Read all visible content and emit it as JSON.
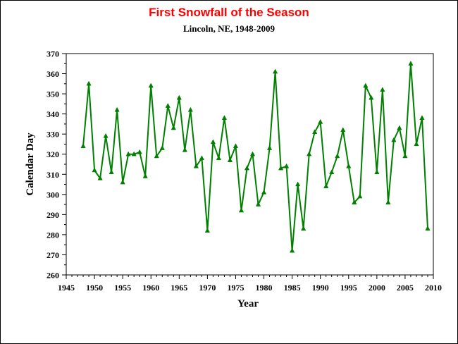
{
  "chart_data": {
    "type": "line",
    "title": "First Snowfall of the Season",
    "subtitle": "Lincoln, NE, 1948-2009",
    "xlabel": "Year",
    "ylabel": "Calendar Day",
    "xlim": [
      1945,
      2010
    ],
    "ylim": [
      260,
      370
    ],
    "x_ticks": [
      1945,
      1950,
      1955,
      1960,
      1965,
      1970,
      1975,
      1980,
      1985,
      1990,
      1995,
      2000,
      2005,
      2010
    ],
    "y_ticks": [
      260,
      270,
      280,
      290,
      300,
      310,
      320,
      330,
      340,
      350,
      360,
      370
    ],
    "grid": false,
    "legend": "none",
    "series": [
      {
        "color": "#008000",
        "marker": "triangle",
        "x": [
          1948,
          1949,
          1950,
          1951,
          1952,
          1953,
          1954,
          1955,
          1956,
          1957,
          1958,
          1959,
          1960,
          1961,
          1962,
          1963,
          1964,
          1965,
          1966,
          1967,
          1968,
          1969,
          1970,
          1971,
          1972,
          1973,
          1974,
          1975,
          1976,
          1977,
          1978,
          1979,
          1980,
          1981,
          1982,
          1983,
          1984,
          1985,
          1986,
          1987,
          1988,
          1989,
          1990,
          1991,
          1992,
          1993,
          1994,
          1995,
          1996,
          1997,
          1998,
          1999,
          2000,
          2001,
          2002,
          2003,
          2004,
          2005,
          2006,
          2007,
          2008,
          2009
        ],
        "y": [
          324,
          355,
          312,
          308,
          329,
          311,
          342,
          306,
          320,
          320,
          321,
          309,
          354,
          319,
          323,
          344,
          333,
          348,
          322,
          342,
          314,
          318,
          282,
          326,
          318,
          338,
          317,
          324,
          292,
          313,
          320,
          295,
          301,
          323,
          361,
          313,
          314,
          272,
          305,
          283,
          320,
          331,
          336,
          304,
          311,
          319,
          332,
          314,
          296,
          299,
          354,
          348,
          311,
          352,
          296,
          327,
          333,
          319,
          365,
          325,
          338,
          283
        ]
      }
    ]
  },
  "colors": {
    "title": "#ff0000",
    "line": "#008000",
    "axis": "#000000"
  }
}
